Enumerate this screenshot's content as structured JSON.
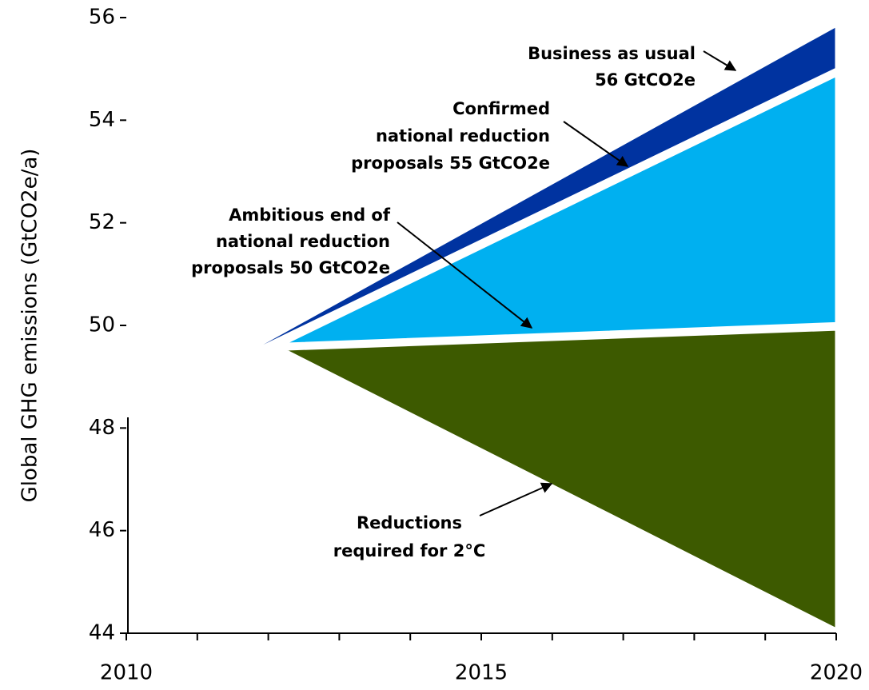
{
  "chart_data": {
    "type": "area",
    "ylabel": "Global GHG emissions  (GtCO2e/a)",
    "xlim": [
      2010,
      2020
    ],
    "xticks": [
      2010,
      2015,
      2020
    ],
    "xminor": [
      2011,
      2012,
      2013,
      2014,
      2016,
      2017,
      2018,
      2019
    ],
    "ylim": [
      44,
      56
    ],
    "yticks": [
      44,
      46,
      48,
      50,
      52,
      54,
      56
    ],
    "series": [
      {
        "color": "#0033a0",
        "x": [
          2011.38,
          2020
        ],
        "values": [
          49.23,
          55.84
        ],
        "lower": [
          49.23,
          55.0
        ]
      },
      {
        "color": "#00b0f0",
        "x": [
          2012.22,
          2020
        ],
        "values": [
          49.64,
          54.87
        ],
        "lower": [
          49.64,
          50.04
        ]
      },
      {
        "color": "#3d5a00",
        "x": [
          2012.22,
          2020
        ],
        "values": [
          49.53,
          49.92
        ],
        "lower": [
          49.53,
          44.08
        ]
      }
    ],
    "annotations": [
      {
        "lines": [
          "Business as usual",
          "56 GtCO2e"
        ]
      },
      {
        "lines": [
          "Confirmed",
          "national reduction",
          "proposals 55 GtCO2e"
        ]
      },
      {
        "lines": [
          "Ambitious end of",
          "national reduction",
          "proposals 50 GtCO2e"
        ]
      },
      {
        "lines": [
          "Reductions",
          "required for 2°C"
        ]
      }
    ]
  }
}
